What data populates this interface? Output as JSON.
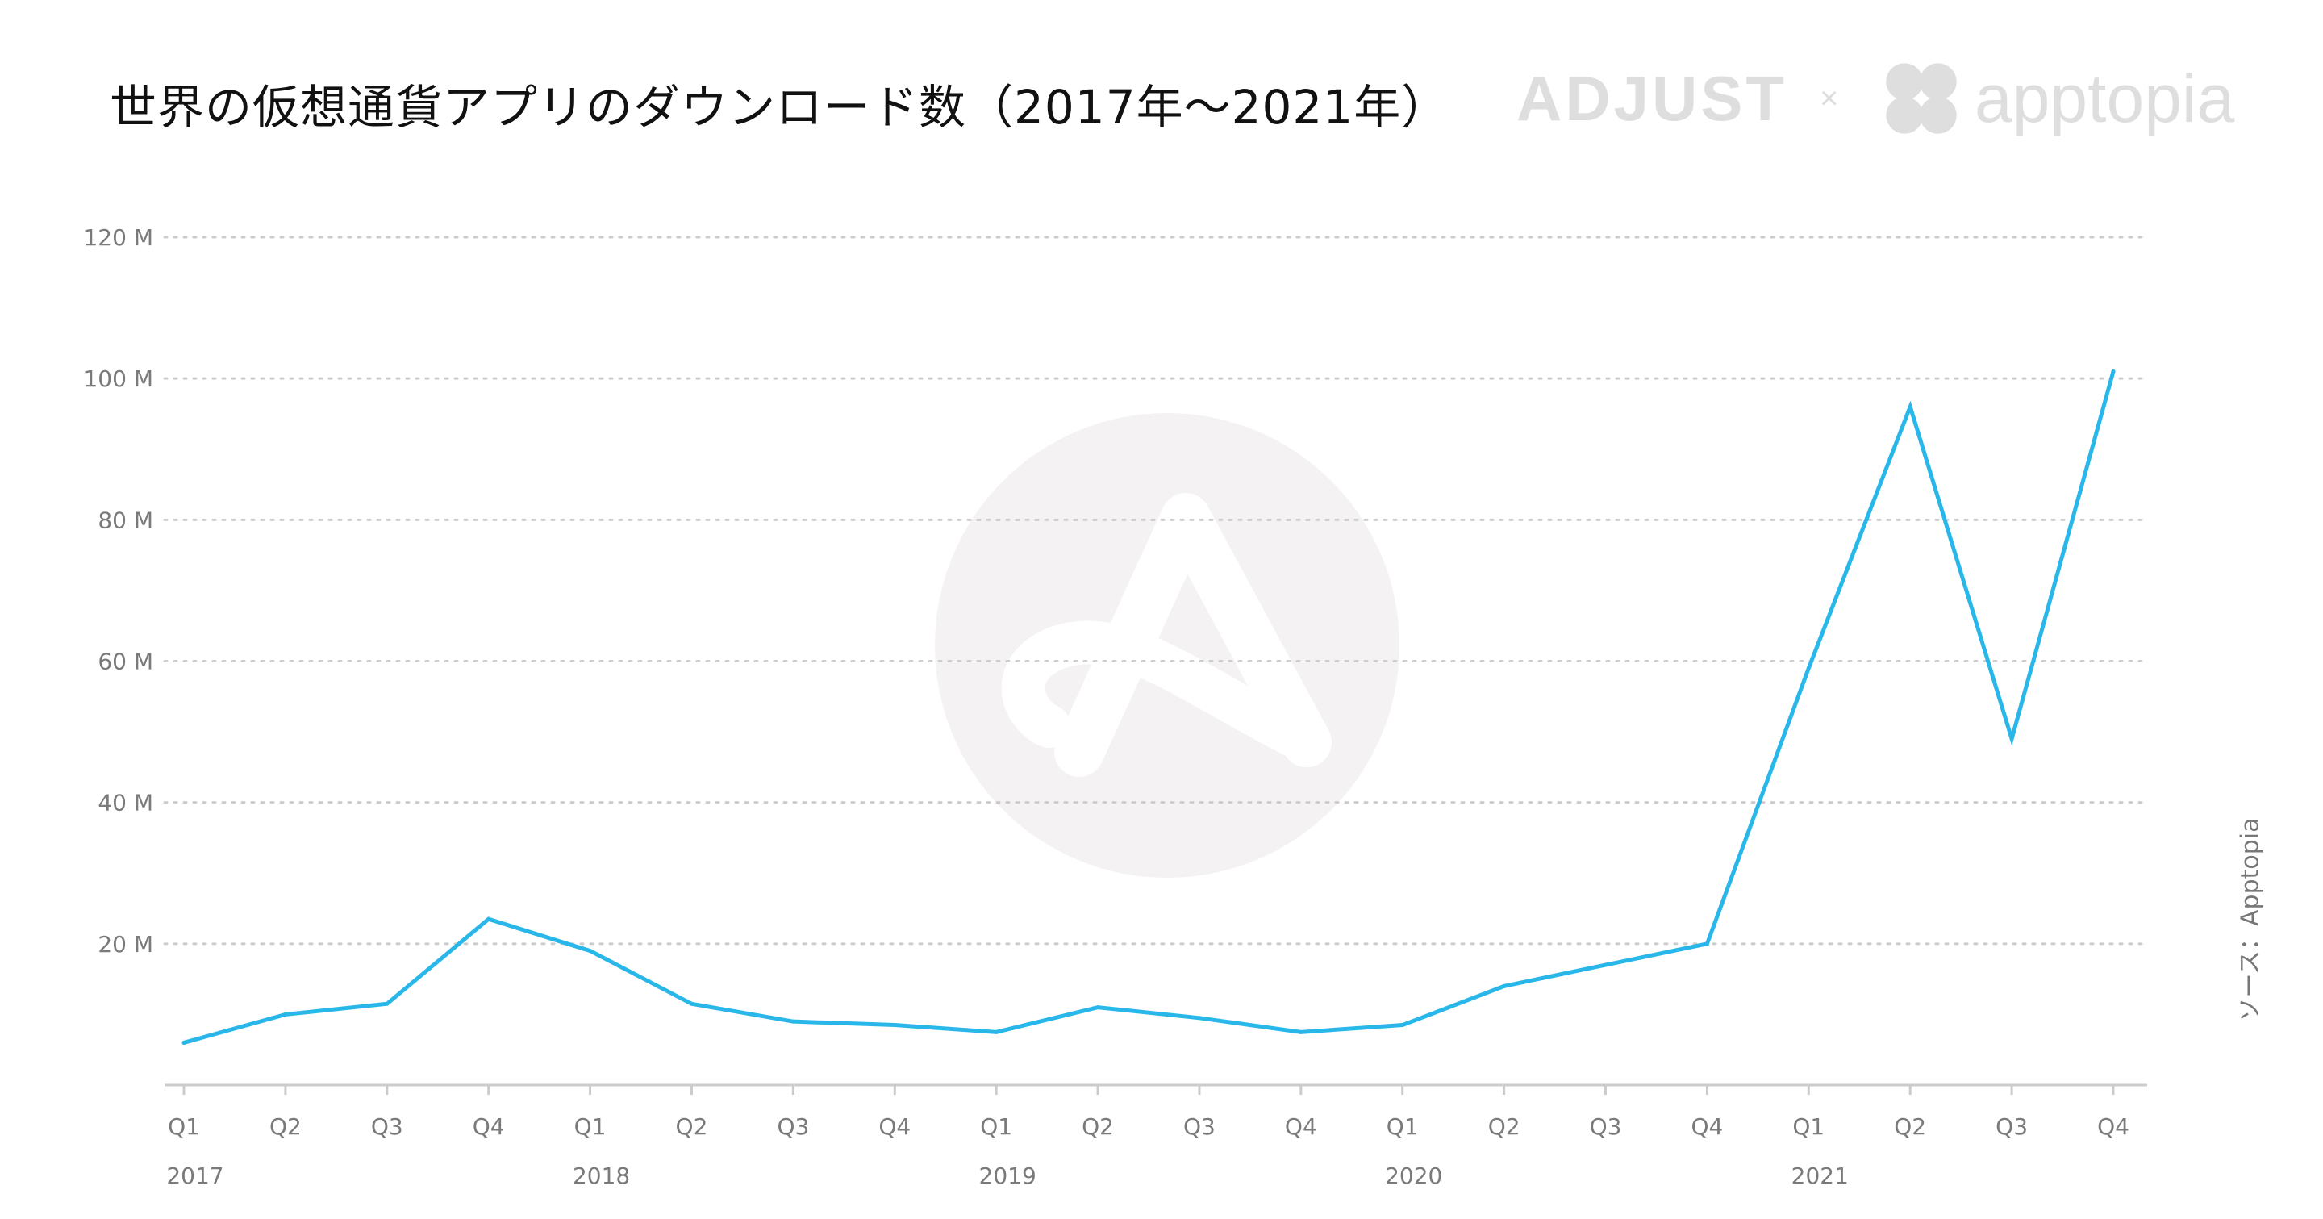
{
  "header": {
    "title": "世界の仮想通貨アプリのダウンロード数（2017年〜2021年）",
    "brand_adjust": "ADJUST",
    "brand_times": "×",
    "brand_apptopia": "apptopia"
  },
  "source_note": "ソース：Apptopia",
  "colors": {
    "line": "#29b7ea",
    "grid": "#cccccc",
    "watermark": "#f4f2f2",
    "brand": "#dedede"
  },
  "icons": {
    "watermark": "adjust-logo-icon",
    "brand_logo": "apptopia-logo-icon"
  },
  "chart_data": {
    "type": "line",
    "title": "世界の仮想通貨アプリのダウンロード数（2017年〜2021年）",
    "xlabel": "",
    "ylabel": "",
    "ylim": [
      0,
      120
    ],
    "y_unit": "M",
    "y_ticks": [
      20,
      40,
      60,
      80,
      100,
      120
    ],
    "y_tick_labels": [
      "20 M",
      "40 M",
      "60 M",
      "80 M",
      "100 M",
      "120 M"
    ],
    "categories": [
      "Q1",
      "Q2",
      "Q3",
      "Q4",
      "Q1",
      "Q2",
      "Q3",
      "Q4",
      "Q1",
      "Q2",
      "Q3",
      "Q4",
      "Q1",
      "Q2",
      "Q3",
      "Q4",
      "Q1",
      "Q2",
      "Q3",
      "Q4"
    ],
    "year_labels": [
      {
        "label": "2017",
        "category_index": 0
      },
      {
        "label": "2018",
        "category_index": 4
      },
      {
        "label": "2019",
        "category_index": 8
      },
      {
        "label": "2020",
        "category_index": 12
      },
      {
        "label": "2021",
        "category_index": 16
      }
    ],
    "series": [
      {
        "values": [
          6,
          10,
          11.5,
          23.5,
          19,
          11.5,
          9,
          8.5,
          7.5,
          11,
          9.5,
          7.5,
          8.5,
          14,
          17,
          20,
          59,
          96,
          49,
          101
        ]
      }
    ],
    "grid": true,
    "legend": "none"
  }
}
